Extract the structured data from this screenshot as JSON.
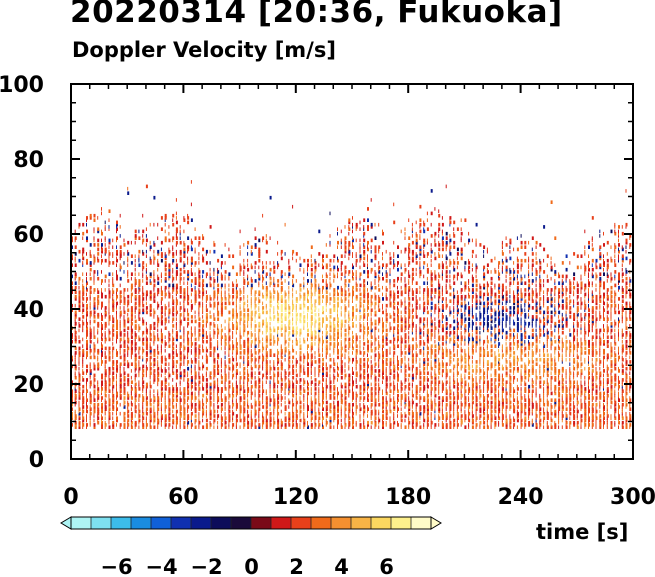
{
  "chart_data": {
    "type": "heatmap",
    "title": "20220314 [20:36, Fukuoka]",
    "subtitle": "Doppler Velocity [m/s]",
    "xlabel": "time [s]",
    "ylabel": "",
    "xlim": [
      0,
      300
    ],
    "ylim": [
      0,
      100
    ],
    "xticks": [
      0,
      60,
      120,
      180,
      240,
      300
    ],
    "yticks": [
      0,
      20,
      40,
      60,
      80,
      100
    ],
    "data_range": {
      "height_min": 8,
      "height_max_typical": 60
    },
    "features": [
      {
        "time": [
          70,
          170
        ],
        "height": [
          30,
          45
        ],
        "velocity": 7
      },
      {
        "time": [
          190,
          270
        ],
        "height": [
          32,
          42
        ],
        "velocity": -2
      },
      {
        "time": [
          0,
          300
        ],
        "height": [
          8,
          20
        ],
        "velocity": 2
      }
    ],
    "colorbar": {
      "vmin": -8,
      "vmax": 8,
      "ticks": [
        -6,
        -4,
        -2,
        0,
        2,
        4,
        6
      ],
      "tick_labels": [
        "−6",
        "−4",
        "−2",
        "0",
        "2",
        "4",
        "6"
      ],
      "colors": [
        "#aef4f4",
        "#7ee0f0",
        "#3cbcea",
        "#1a8ce0",
        "#1060d8",
        "#1030b0",
        "#0a1a8c",
        "#0c0c5a",
        "#1a0a3a",
        "#7a0a18",
        "#d01818",
        "#e8401a",
        "#f06a1a",
        "#f59030",
        "#f8b446",
        "#fbd760",
        "#fdf08c",
        "#fffbc8"
      ]
    }
  }
}
